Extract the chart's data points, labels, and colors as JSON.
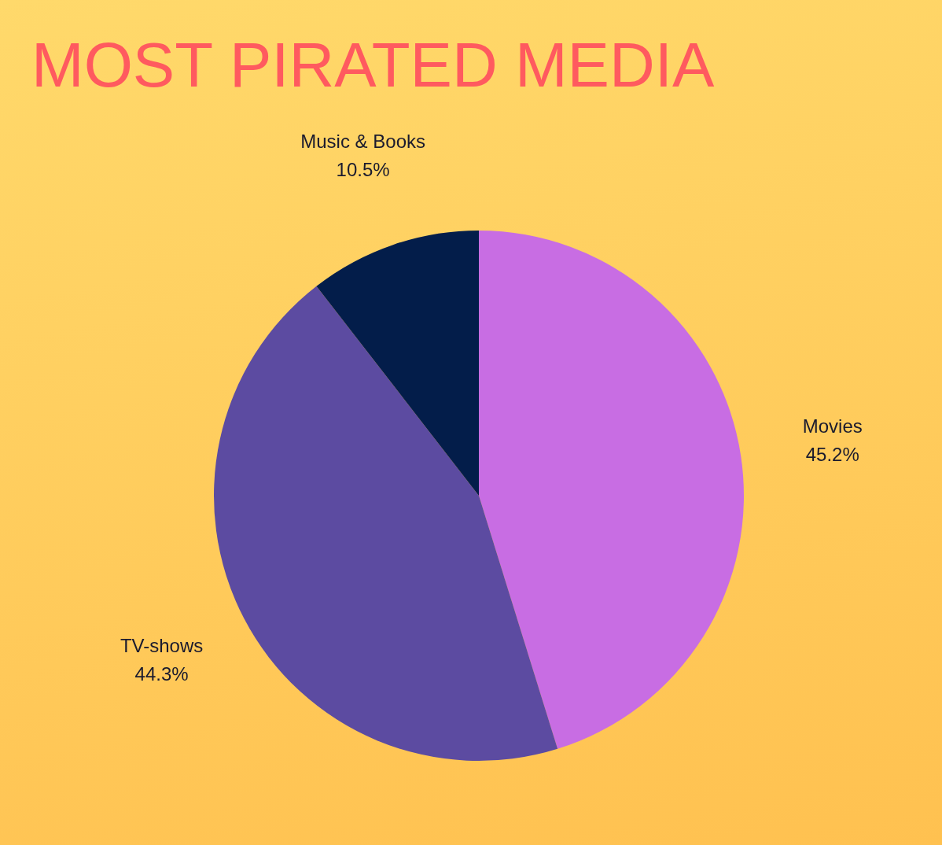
{
  "chart_data": {
    "type": "pie",
    "title": "MOST PIRATED MEDIA",
    "categories": [
      "Movies",
      "TV-shows",
      "Music & Books"
    ],
    "values": [
      45.2,
      44.3,
      10.5
    ],
    "colors": [
      "#c86de3",
      "#5c4ba1",
      "#031d4a"
    ],
    "value_labels": [
      "45.2%",
      "44.3%",
      "10.5%"
    ],
    "legend": false
  }
}
